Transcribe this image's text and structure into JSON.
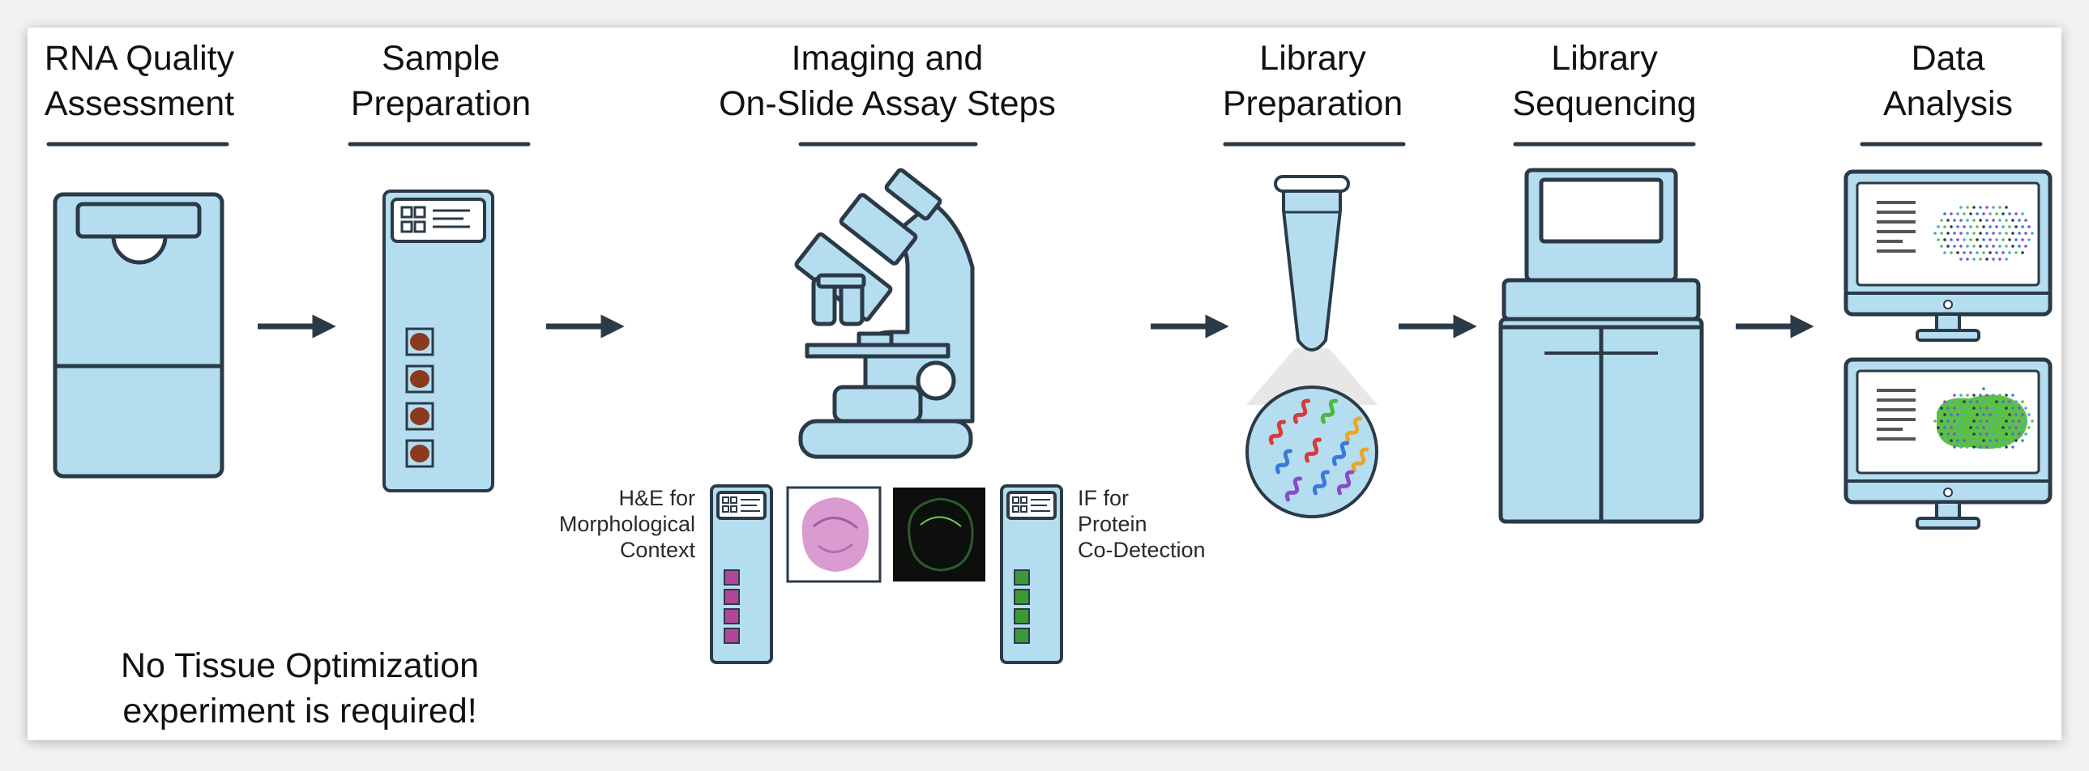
{
  "steps": [
    {
      "line1": "RNA Quality",
      "line2": "Assessment"
    },
    {
      "line1": "Sample",
      "line2": "Preparation"
    },
    {
      "line1": "Imaging and",
      "line2": "On-Slide Assay Steps"
    },
    {
      "line1": "Library",
      "line2": "Preparation"
    },
    {
      "line1": "Library",
      "line2": "Sequencing"
    },
    {
      "line1": "Data",
      "line2": "Analysis"
    }
  ],
  "he_label": [
    "H&E for",
    "Morphological",
    "Context"
  ],
  "if_label": [
    "IF for",
    "Protein",
    "Co-Detection"
  ],
  "note": [
    "No Tissue Optimization",
    "experiment is required!"
  ],
  "colors": {
    "equipment_fill": "#b5ddf0",
    "outline": "#2b3a47",
    "arrow": "#2b3a47",
    "tissue": "#8b3a1f",
    "he_square": "#b3459a",
    "if_square": "#3c9a36",
    "he_tissue": "#d99bd0",
    "if_background": "#0c0f0c",
    "analysis_green": "#5cc046"
  },
  "icons": [
    "bioanalyzer-icon",
    "slide-icon",
    "microscope-icon",
    "tube-icon",
    "sequencer-icon",
    "monitor-icon"
  ]
}
